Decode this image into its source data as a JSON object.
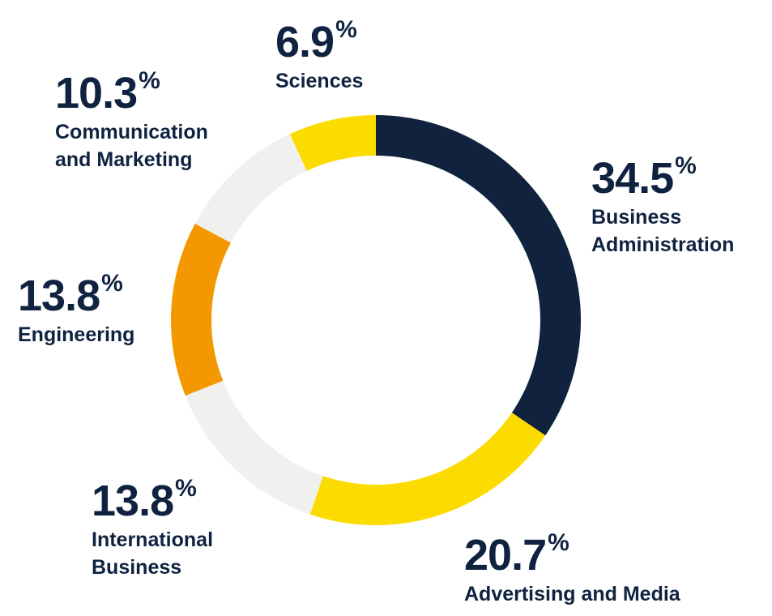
{
  "chart_data": {
    "type": "pie",
    "variant": "donut",
    "unit": "%",
    "slices": [
      {
        "label": "Business Administration",
        "label_lines": [
          "Business",
          "Administration"
        ],
        "value": 34.5,
        "display": "34.5",
        "color": "#10223d"
      },
      {
        "label": "Advertising and Media",
        "label_lines": [
          "Advertising and Media"
        ],
        "value": 20.7,
        "display": "20.7",
        "color": "#fcdb00"
      },
      {
        "label": "International Business",
        "label_lines": [
          "International",
          "Business"
        ],
        "value": 13.8,
        "display": "13.8",
        "color": "#f0f0ee"
      },
      {
        "label": "Engineering",
        "label_lines": [
          "Engineering"
        ],
        "value": 13.8,
        "display": "13.8",
        "color": "#f39800"
      },
      {
        "label": "Communication and Marketing",
        "label_lines": [
          "Communication",
          "and Marketing"
        ],
        "value": 10.3,
        "display": "10.3",
        "color": "#f0f0ee"
      },
      {
        "label": "Sciences",
        "label_lines": [
          "Sciences"
        ],
        "value": 6.9,
        "display": "6.9",
        "color": "#fcdb00"
      }
    ]
  }
}
